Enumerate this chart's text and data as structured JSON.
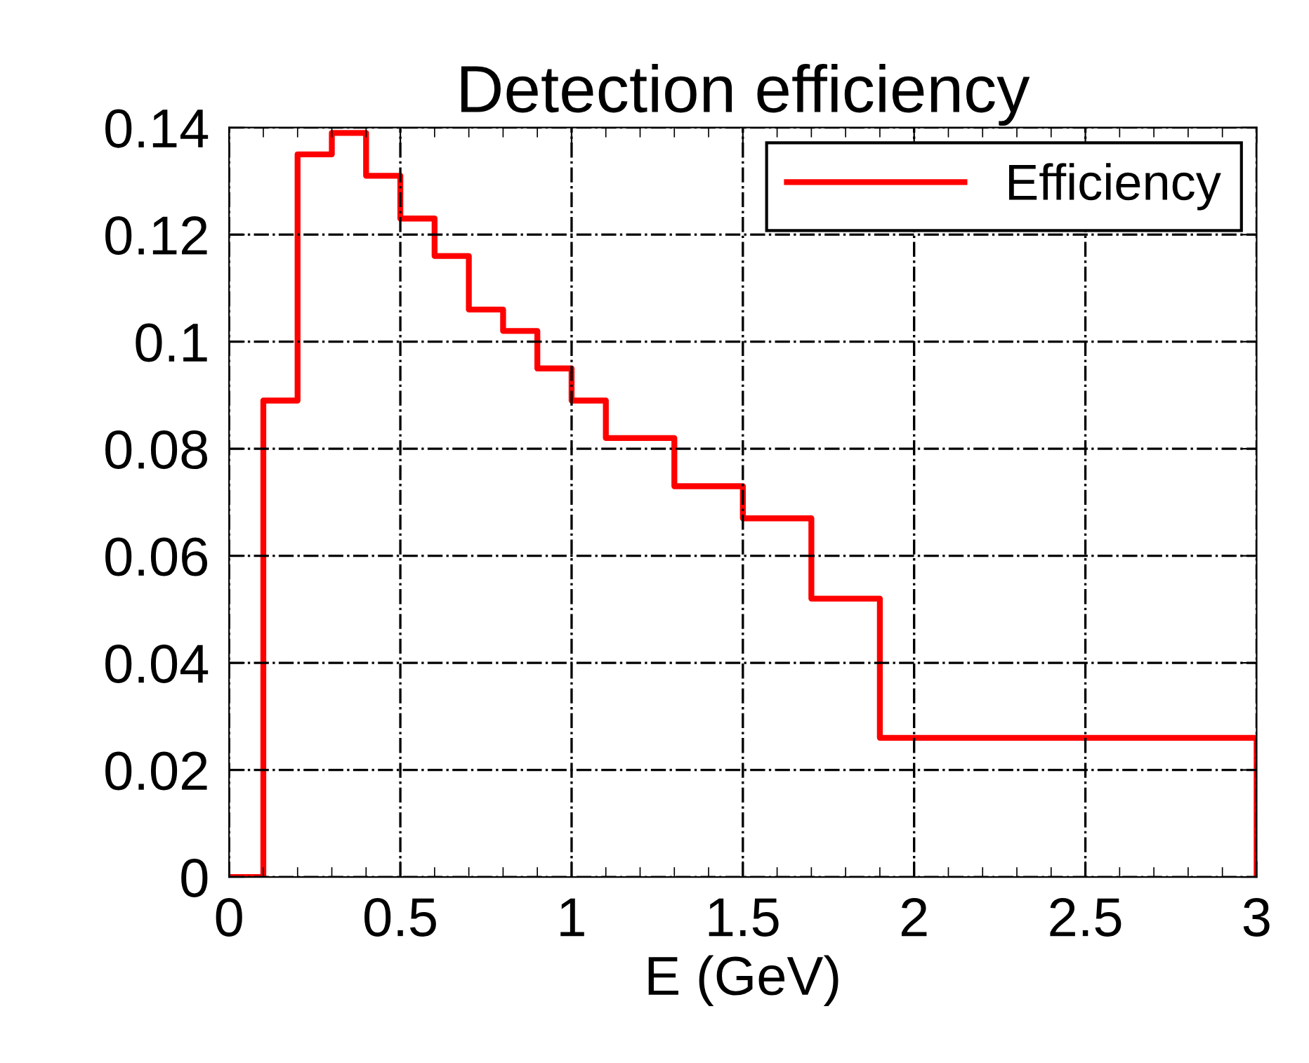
{
  "chart_data": {
    "type": "histogram",
    "title": "Detection efficiency",
    "xlabel": "E (GeV)",
    "bins": [
      0,
      0.1,
      0.2,
      0.3,
      0.4,
      0.5,
      0.6,
      0.7,
      0.8,
      0.9,
      1.0,
      1.1,
      1.3,
      1.5,
      1.7,
      1.9,
      3.0
    ],
    "series": [
      {
        "name": "Efficiency",
        "color": "#ff0000",
        "values": [
          0,
          0.089,
          0.135,
          0.139,
          0.131,
          0.123,
          0.116,
          0.106,
          0.102,
          0.095,
          0.089,
          0.082,
          0.073,
          0.067,
          0.052,
          0.026
        ]
      }
    ],
    "xlim": [
      0,
      3
    ],
    "xticks": [
      0,
      0.5,
      1,
      1.5,
      2,
      2.5,
      3
    ],
    "ylim": [
      0,
      0.14
    ],
    "yticks": [
      0,
      0.02,
      0.04,
      0.06,
      0.08,
      0.1,
      0.12,
      0.14
    ],
    "grid": true,
    "legend": "top right"
  }
}
